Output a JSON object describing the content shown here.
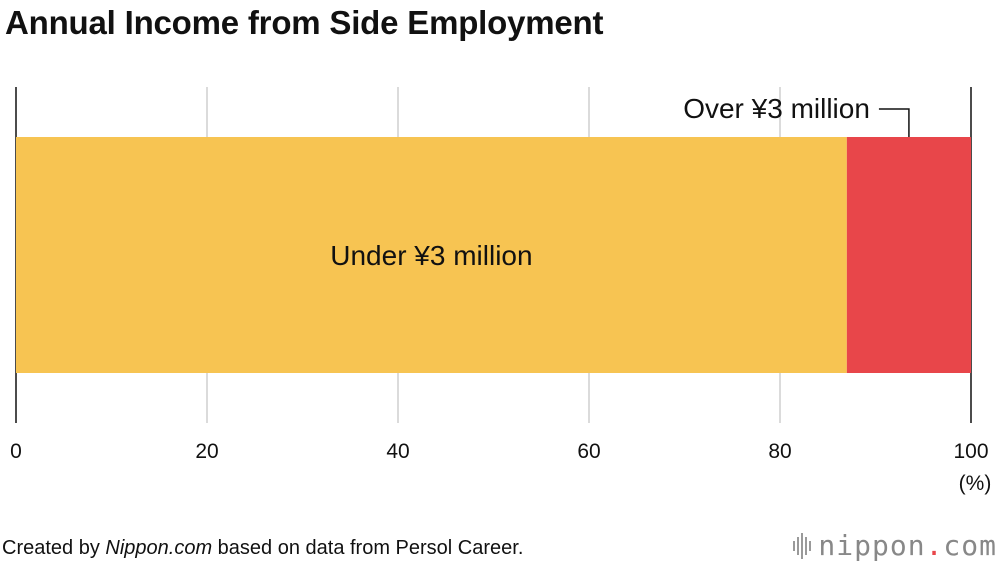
{
  "title": "Annual Income from Side Employment",
  "chart_data": {
    "type": "bar",
    "orientation": "horizontal-stacked-100",
    "title": "Annual Income from Side Employment",
    "categories": [
      ""
    ],
    "series": [
      {
        "name": "Under ¥3 million",
        "values": [
          87
        ],
        "color": "#f7c452"
      },
      {
        "name": "Over ¥3 million",
        "values": [
          13
        ],
        "color": "#e8464a"
      }
    ],
    "xlim": [
      0,
      100
    ],
    "x_ticks": [
      "0",
      "20",
      "40",
      "60",
      "80",
      "100"
    ],
    "x_unit": "(%)",
    "grid": true,
    "legend": "labels on bars"
  },
  "footer": {
    "prefix": "Created by ",
    "site": "Nippon.com",
    "suffix": " based on data from Persol Career."
  },
  "brand": {
    "name": "nippon",
    "dot": ".",
    "tld": "com"
  }
}
